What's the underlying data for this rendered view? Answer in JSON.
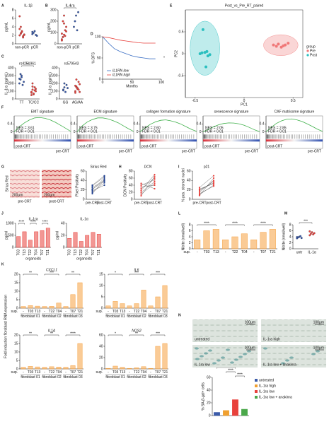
{
  "chart_data": [
    {
      "type": "strip",
      "panel": "A",
      "title": "IL-1β",
      "ylabel": "pg/mL",
      "categories": [
        "non-pCR",
        "pCR"
      ],
      "colors": [
        "#e8413c",
        "#3b5ba9"
      ],
      "ylim": [
        0,
        8
      ],
      "yticks": [
        0,
        2,
        4,
        6,
        8
      ],
      "values": [
        [
          2,
          2.5,
          3,
          1.8,
          2.2,
          3.5,
          4,
          2.8,
          1.5,
          2.1,
          6.5,
          2.4
        ],
        [
          2.3,
          2.6,
          3,
          2.1,
          1.9,
          2.8
        ]
      ]
    },
    {
      "type": "strip",
      "panel": "B",
      "title": "IL-1ra",
      "ylabel": "pg/mL",
      "categories": [
        "non-pCR",
        "pCR"
      ],
      "colors": [
        "#e8413c",
        "#3b5ba9"
      ],
      "ylim": [
        0,
        300
      ],
      "yticks": [
        0,
        100,
        200,
        300
      ],
      "values": [
        [
          40,
          60,
          80,
          120,
          150,
          90,
          200,
          250,
          70,
          110,
          30,
          60,
          180
        ],
        [
          150,
          200,
          250,
          120,
          280
        ]
      ],
      "annotations": [
        "*"
      ]
    },
    {
      "type": "strip",
      "panel": "C",
      "title": "rs4251961",
      "ylabel": "IL-1ra (pg/mL)",
      "categories": [
        "TT",
        "TC/CC"
      ],
      "colors": [
        "#3b5ba9",
        "#e8413c"
      ],
      "ylim": [
        0,
        400
      ],
      "yticks": [
        0,
        100,
        200,
        300,
        400
      ],
      "values": [
        [
          200,
          250,
          300,
          180,
          220,
          260,
          320,
          280
        ],
        [
          80,
          120,
          60,
          150,
          100,
          90,
          200,
          70,
          110,
          130,
          50,
          160
        ]
      ],
      "annotations": [
        "**"
      ]
    },
    {
      "type": "strip",
      "title": "rs579543",
      "ylabel": "IL-1ra (pg/mL)",
      "categories": [
        "GG",
        "AG/AA"
      ],
      "colors": [
        "#3b5ba9",
        "#e8413c"
      ],
      "ylim": [
        0,
        400
      ],
      "yticks": [
        0,
        100,
        200,
        300,
        400
      ],
      "values": [
        [
          120,
          150,
          90,
          180,
          140,
          110,
          200
        ],
        [
          100,
          160,
          130,
          220,
          90,
          170,
          250,
          140,
          120,
          190,
          80,
          150
        ]
      ]
    },
    {
      "type": "line",
      "panel": "D",
      "ylabel": "% DFS",
      "xlabel": "Months",
      "xlim": [
        0,
        100
      ],
      "xticks": [
        0,
        50,
        100
      ],
      "ylim": [
        0,
        100
      ],
      "yticks": [
        0,
        50,
        100
      ],
      "x": [
        0,
        10,
        20,
        30,
        40,
        50,
        60,
        70,
        80,
        90
      ],
      "series": [
        {
          "name": "IL1RN low",
          "color": "#3b6fc4",
          "values": [
            100,
            85,
            72,
            65,
            60,
            55,
            52,
            50,
            48,
            48
          ]
        },
        {
          "name": "IL1RN high",
          "color": "#e8413c",
          "values": [
            100,
            98,
            95,
            92,
            90,
            88,
            86,
            85,
            85,
            85
          ]
        }
      ],
      "annotations": [
        "*"
      ]
    },
    {
      "type": "scatter",
      "panel": "E",
      "title": "Post_vs_Pre_RT_paired",
      "xlabel": "PC1",
      "ylabel": "PC2",
      "legend_title": "group",
      "xlim": [
        -0.6,
        0.6
      ],
      "xticks": [
        -0.5,
        0,
        0.5
      ],
      "ylim": [
        -1,
        1
      ],
      "yticks": [
        -0.5,
        0,
        0.5
      ],
      "series": [
        {
          "name": "Pre",
          "color": "#f07878",
          "x": [
            0.3,
            0.35,
            0.4,
            0.45,
            0.38,
            0.42,
            0.33
          ],
          "values": [
            0.2,
            0.22,
            0.18,
            0.24,
            0.15,
            0.2,
            0.17
          ]
        },
        {
          "name": "Post",
          "color": "#2bbfbf",
          "x": [
            -0.42,
            -0.38,
            -0.45,
            -0.35,
            -0.4,
            -0.37,
            -0.43,
            -0.39
          ],
          "values": [
            0.55,
            0.05,
            0.0,
            -0.02,
            0.03,
            -0.05,
            0.02,
            -0.3
          ]
        }
      ]
    },
    {
      "type": "gsea",
      "panel": "F",
      "title": "EMT signature",
      "nes": "NES = 3.61",
      "fdr": "FDR < 0.01",
      "left_label": "post-CRT",
      "right_label": "pre-CRT",
      "ylim": [
        -0.1,
        0.8
      ],
      "yticks": [
        0,
        0.4
      ],
      "values": [
        0,
        0.25,
        0.45,
        0.6,
        0.7,
        0.72,
        0.68,
        0.6,
        0.48,
        0.33,
        0.18,
        0.02
      ]
    },
    {
      "type": "gsea",
      "title": "ECM signature",
      "nes": "NES = 3.75",
      "fdr": "FDR < 0.01",
      "left_label": "post-CRT",
      "right_label": "pre-CRT",
      "ylim": [
        -0.1,
        0.8
      ],
      "yticks": [
        0,
        0.4
      ],
      "values": [
        0,
        0.3,
        0.5,
        0.62,
        0.7,
        0.7,
        0.65,
        0.56,
        0.45,
        0.3,
        0.15,
        0.02
      ]
    },
    {
      "type": "gsea",
      "title": "collagen formation signature",
      "nes": "NES = 2.60",
      "fdr": "FDR < 0.01",
      "left_label": "post-CRT",
      "right_label": "pre-CRT",
      "ylim": [
        -0.1,
        0.8
      ],
      "yticks": [
        0,
        0.4
      ],
      "values": [
        0,
        0.2,
        0.38,
        0.5,
        0.58,
        0.6,
        0.55,
        0.48,
        0.38,
        0.25,
        0.12,
        0.02
      ]
    },
    {
      "type": "gsea",
      "title": "senescence signature",
      "nes": "NES = 2.05",
      "fdr": "FDR < 0.01",
      "left_label": "post-CRT",
      "right_label": "pre-CRT",
      "ylim": [
        -0.1,
        0.8
      ],
      "yticks": [
        0,
        0.4
      ],
      "values": [
        0,
        0.12,
        0.25,
        0.35,
        0.42,
        0.45,
        0.44,
        0.4,
        0.33,
        0.22,
        0.1,
        0.01
      ]
    },
    {
      "type": "gsea",
      "title": "CAF matrisome signature",
      "nes": "NES = 2.85",
      "fdr": "FDR < 0.01",
      "left_label": "post-CRT",
      "right_label": "pre-CRT",
      "ylim": [
        -0.1,
        0.8
      ],
      "yticks": [
        0,
        0.4
      ],
      "values": [
        0,
        0.22,
        0.42,
        0.55,
        0.63,
        0.65,
        0.6,
        0.52,
        0.4,
        0.27,
        0.13,
        0.02
      ]
    },
    {
      "type": "paired",
      "panel": "G",
      "title": "Sirius Red",
      "image_title": "Sirius Red",
      "images": [
        {
          "label": "pre-CRT",
          "scale": "200µm"
        },
        {
          "label": "post-CRT",
          "scale": "200µm"
        }
      ],
      "ylabel": "Pixel Positivity",
      "categories": [
        "pre-CRT",
        "post-CRT"
      ],
      "color": "#1f3f8f",
      "ylim": [
        0,
        60
      ],
      "yticks": [
        0,
        20,
        40,
        60
      ],
      "values": [
        [
          15,
          20,
          25,
          18,
          30,
          22,
          12,
          28
        ],
        [
          35,
          45,
          40,
          30,
          50,
          38,
          42,
          48
        ]
      ]
    },
    {
      "type": "paired",
      "panel": "H",
      "title": "DCN",
      "ylabel": "DCN Positivity",
      "categories": [
        "pre-CRT",
        "post-CRT"
      ],
      "color": "#e8413c",
      "ylim": [
        0,
        80
      ],
      "yticks": [
        0,
        20,
        40,
        60,
        80
      ],
      "values": [
        [
          20,
          30,
          15,
          40,
          25,
          35,
          10,
          45
        ],
        [
          50,
          60,
          45,
          55,
          70,
          40,
          65,
          30
        ]
      ]
    },
    {
      "type": "paired",
      "panel": "I",
      "title": "p21",
      "ylabel": "% pos. stromal nuclei",
      "categories": [
        "pre-CRT",
        "post-CRT"
      ],
      "color": "#e8413c",
      "ylim": [
        0,
        60
      ],
      "yticks": [
        0,
        20,
        40,
        60
      ],
      "values": [
        [
          10,
          15,
          20,
          12,
          25,
          18,
          8,
          22
        ],
        [
          30,
          40,
          35,
          28,
          50,
          38,
          45,
          33
        ]
      ]
    },
    {
      "type": "bar",
      "panel": "J",
      "title": "IL-1ra",
      "ylabel": "pg/ml",
      "xlabel": "organoids",
      "categories": [
        "T03",
        "T13",
        "T22",
        "T04",
        "T07",
        "T21"
      ],
      "color": "#e8413c",
      "ylim": [
        0,
        1000
      ],
      "yticks": [
        0,
        500,
        1000
      ],
      "values": [
        450,
        650,
        300,
        650,
        700,
        800
      ],
      "annotations": [
        "****",
        "****",
        "****"
      ]
    },
    {
      "type": "bar",
      "title": "IL-1α",
      "ylabel": "pg/ml",
      "xlabel": "organoids",
      "categories": [
        "T03",
        "T13",
        "T22",
        "T04",
        "T07",
        "T21"
      ],
      "color": "#e8413c",
      "ylim": [
        0,
        40
      ],
      "yticks": [
        0,
        20,
        40
      ],
      "values": [
        15,
        25,
        10,
        20,
        25,
        22
      ]
    },
    {
      "type": "bar",
      "panel": "K",
      "title": "CXCL1",
      "ylabel": "Fold induction fibroblast RNA expression",
      "xlabel": "sup.",
      "categories": [
        "-",
        "T03",
        "T13",
        "-",
        "T22",
        "T04",
        "-",
        "T07",
        "T21"
      ],
      "groups": [
        "fibroblast 01",
        "fibroblast 02",
        "fibroblast 03"
      ],
      "color": "#f5a040",
      "ylim": [
        0,
        20
      ],
      "yticks": [
        0,
        5,
        10,
        15,
        20
      ],
      "values": [
        1,
        1.5,
        1.2,
        1,
        1.1,
        3,
        1,
        8,
        15
      ],
      "annotations": [
        "**",
        "***",
        "**"
      ]
    },
    {
      "type": "bar",
      "title": "IL6",
      "xlabel": "sup.",
      "categories": [
        "-",
        "T03",
        "T13",
        "-",
        "T22",
        "T04",
        "-",
        "T07",
        "T21"
      ],
      "groups": [
        "fibroblast 01",
        "fibroblast 02",
        "fibroblast 03"
      ],
      "color": "#f5a040",
      "ylim": [
        0,
        15
      ],
      "yticks": [
        0,
        5,
        10,
        15
      ],
      "values": [
        1,
        3,
        2,
        1,
        2,
        8,
        1,
        5,
        10
      ],
      "annotations": [
        "*",
        "***",
        "***"
      ]
    },
    {
      "type": "bar",
      "title": "IL1A",
      "xlabel": "sup.",
      "categories": [
        "-",
        "T03",
        "T13",
        "-",
        "T22",
        "T04",
        "-",
        "T07",
        "T21"
      ],
      "groups": [
        "fibroblast 01",
        "fibroblast 02",
        "fibroblast 03"
      ],
      "color": "#f5a040",
      "ylim": [
        0,
        20
      ],
      "yticks": [
        0,
        5,
        10,
        15,
        20
      ],
      "values": [
        1,
        1.5,
        1.2,
        1,
        1.3,
        1.1,
        1,
        2,
        15
      ],
      "annotations": [
        "**",
        "**",
        "****"
      ]
    },
    {
      "type": "bar",
      "title": "NOS2",
      "xlabel": "sup.",
      "categories": [
        "-",
        "T03",
        "T13",
        "-",
        "T22",
        "T04",
        "-",
        "T07",
        "T21"
      ],
      "groups": [
        "fibroblast 01",
        "fibroblast 02",
        "fibroblast 03"
      ],
      "color": "#f5a040",
      "ylim": [
        0,
        60
      ],
      "yticks": [
        0,
        20,
        40,
        60
      ],
      "values": [
        1,
        5,
        3,
        1,
        2,
        4,
        1,
        40,
        45
      ],
      "annotations": [
        "*",
        "**",
        "***"
      ]
    },
    {
      "type": "bar",
      "panel": "L",
      "ylabel": "Nitrite (nmol/well)",
      "xlabel": "sup.",
      "categories": [
        "-",
        "T03",
        "T13",
        "-",
        "T22",
        "T04",
        "-",
        "T07",
        "T21"
      ],
      "color": "#f5a040",
      "ylim": [
        0,
        8
      ],
      "yticks": [
        0,
        2,
        4,
        6,
        8
      ],
      "values": [
        3,
        6,
        6.5,
        3,
        4,
        5,
        3,
        5.5,
        6.5
      ],
      "annotations": [
        "****",
        "****",
        "****"
      ]
    },
    {
      "type": "strip",
      "panel": "M",
      "ylabel": "Nitrite (nmol/well)",
      "categories": [
        "untr",
        "IL-1α"
      ],
      "colors": [
        "#3b5ba9",
        "#e8413c"
      ],
      "ylim": [
        0,
        8
      ],
      "yticks": [
        0,
        2,
        4,
        6,
        8
      ],
      "values": [
        [
          3.5,
          3.8,
          4,
          4.2,
          3.6,
          3.9
        ],
        [
          4.5,
          5,
          5.5,
          4.8,
          5.2,
          5.8
        ]
      ],
      "annotations": [
        "***"
      ]
    },
    {
      "type": "bar",
      "panel": "N",
      "images": [
        {
          "label": "untreated",
          "scale": "100µm"
        },
        {
          "label": "IL-1ra high",
          "scale": "100µm"
        },
        {
          "label": "IL-1ra low",
          "scale": "100µm"
        },
        {
          "label": "IL-1ra low + anakinra",
          "scale": "100µm"
        }
      ],
      "ylabel": "% SA-β-gal+ cells",
      "categories": [
        "untreated",
        "IL-1ra high",
        "IL-1ra low",
        "IL-1ra low + anakinra"
      ],
      "colors": [
        "#3b5ba9",
        "#f0a030",
        "#e8413c",
        "#4aa84a"
      ],
      "ylim": [
        0,
        60
      ],
      "yticks": [
        0,
        20,
        40,
        60
      ],
      "values": [
        5,
        8,
        25,
        10
      ],
      "annotations": [
        "****",
        "****",
        "****"
      ]
    }
  ]
}
